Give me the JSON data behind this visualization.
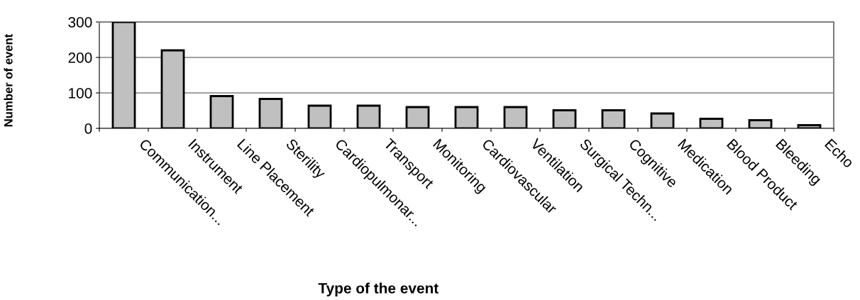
{
  "chart_data": {
    "type": "bar",
    "xlabel": "Type of the event",
    "ylabel": "Number of event",
    "categories": [
      "Communication...",
      "Instrument",
      "Line Placement",
      "Sterility",
      "Cardiopulmonar...",
      "Transport",
      "Monitoring",
      "Cardiovascular",
      "Ventilation",
      "Surgical Techn...",
      "Cognitive",
      "Medication",
      "Blood Product",
      "Bleeding",
      "Echo"
    ],
    "values": [
      300,
      220,
      91,
      83,
      64,
      64,
      60,
      60,
      60,
      51,
      51,
      42,
      27,
      23,
      9
    ],
    "color": "#c0c0c0",
    "ylim": [
      0,
      300
    ],
    "yticks": [
      0,
      100,
      200,
      300
    ],
    "grid": "y",
    "legend": false
  }
}
